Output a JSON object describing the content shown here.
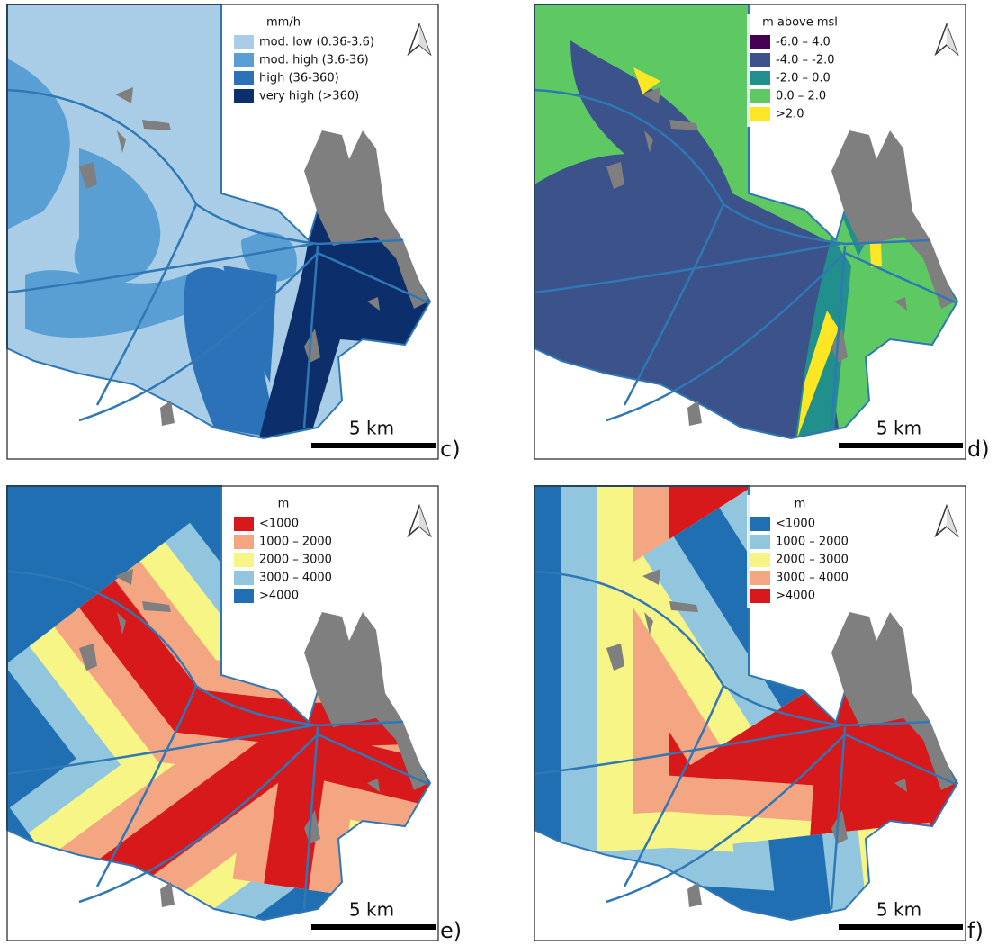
{
  "panels": [
    {
      "label": "c)",
      "scale": "5 km",
      "legend": {
        "title": "mm/h",
        "items": [
          {
            "label": "mod. low (0.36-3.6)",
            "color": "#a9cde6"
          },
          {
            "label": "mod. high (3.6-36)",
            "color": "#5a9fd4"
          },
          {
            "label": "high (36-360)",
            "color": "#2b72b8"
          },
          {
            "label": "very high (>360)",
            "color": "#0c2f6b"
          }
        ]
      }
    },
    {
      "label": "d)",
      "scale": "5 km",
      "legend": {
        "title": "m above msl",
        "items": [
          {
            "label": "-6.0 – 4.0",
            "color": "#440154"
          },
          {
            "label": "-4.0 – -2.0",
            "color": "#3b528b"
          },
          {
            "label": "-2.0 – 0.0",
            "color": "#21908d"
          },
          {
            "label": "0.0 – 2.0",
            "color": "#5ec962"
          },
          {
            "label": ">2.0",
            "color": "#fde725"
          }
        ]
      }
    },
    {
      "label": "e)",
      "scale": "5 km",
      "legend": {
        "title": "m",
        "items": [
          {
            "label": "<1000",
            "color": "#d7191c"
          },
          {
            "label": "1000 – 2000",
            "color": "#f4a582"
          },
          {
            "label": "2000 – 3000",
            "color": "#f7f585"
          },
          {
            "label": "3000 – 4000",
            "color": "#92c5de"
          },
          {
            "label": ">4000",
            "color": "#1f6fb2"
          }
        ]
      }
    },
    {
      "label": "f)",
      "scale": "5 km",
      "legend": {
        "title": "m",
        "items": [
          {
            "label": "<1000",
            "color": "#1f6fb2"
          },
          {
            "label": "1000 – 2000",
            "color": "#92c5de"
          },
          {
            "label": "2000 – 3000",
            "color": "#f7f585"
          },
          {
            "label": "3000 – 4000",
            "color": "#f4a582"
          },
          {
            "label": ">4000",
            "color": "#d7191c"
          }
        ]
      }
    }
  ]
}
